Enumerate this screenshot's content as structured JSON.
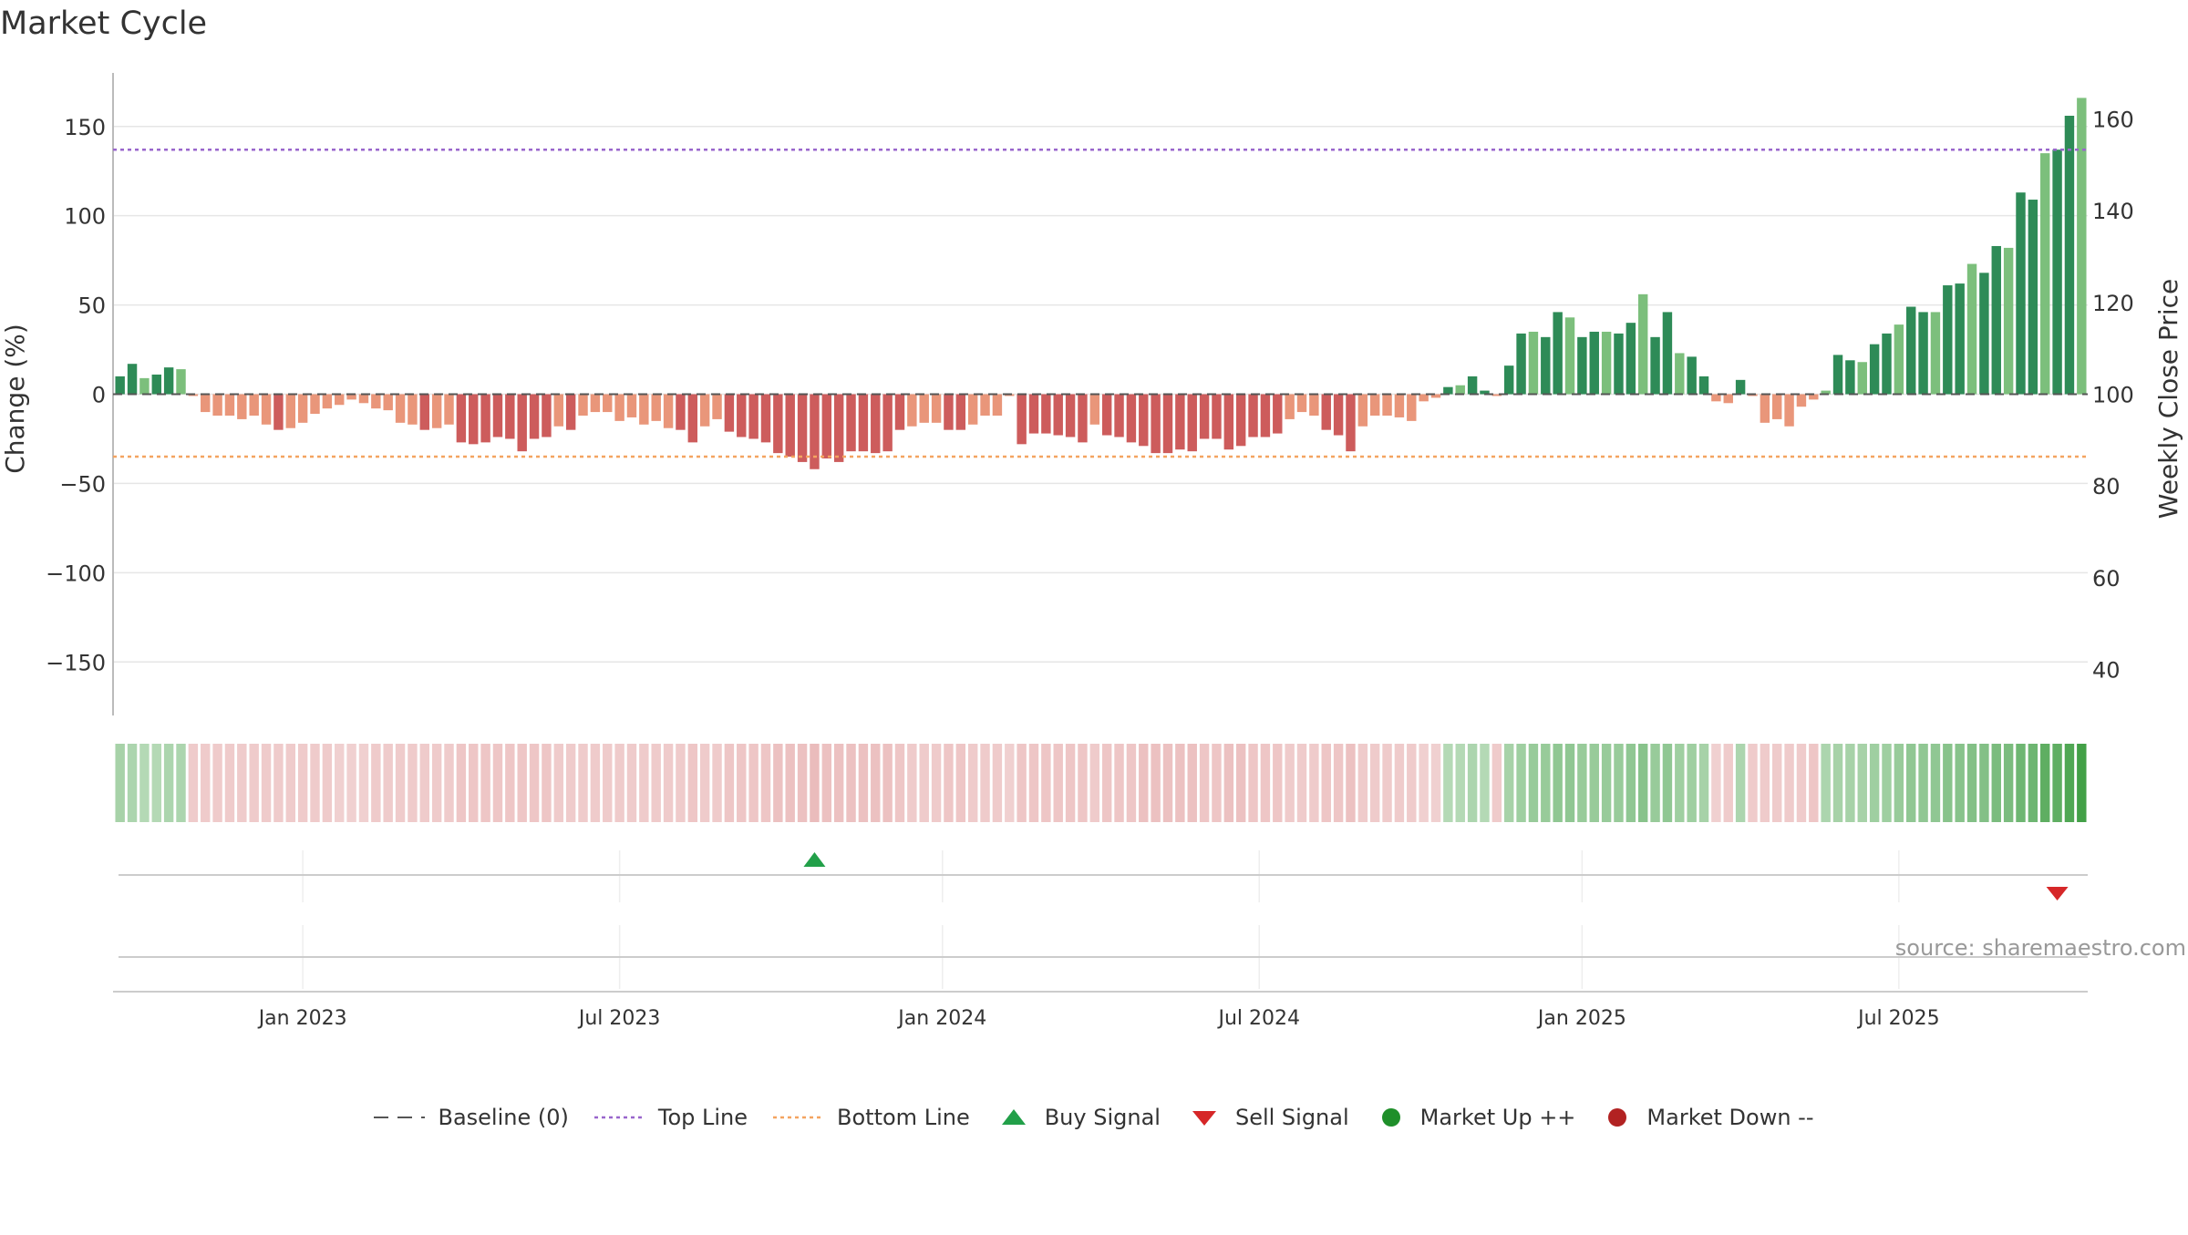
{
  "title": "Market Cycle",
  "source": "source: sharemaestro.com",
  "colors": {
    "up_dark": "#2e8b57",
    "up_light": "#7cbf7c",
    "down_dark": "#cd5c5c",
    "down_light": "#e9967a",
    "top_line": "#9966cc",
    "bottom_line": "#f4a460",
    "baseline": "#555555",
    "buy": "#22a049",
    "sell": "#d62728",
    "market_up": "#1f8f2a",
    "market_down": "#b22222"
  },
  "legend": [
    {
      "label": "Baseline (0)",
      "icon": "dash-line-icon"
    },
    {
      "label": "Top Line",
      "icon": "dotted-purple-line-icon"
    },
    {
      "label": "Bottom Line",
      "icon": "dotted-orange-line-icon"
    },
    {
      "label": "Buy Signal",
      "icon": "triangle-up-icon"
    },
    {
      "label": "Sell Signal",
      "icon": "triangle-down-icon"
    },
    {
      "label": "Market Up ++",
      "icon": "green-dot-icon"
    },
    {
      "label": "Market Down --",
      "icon": "red-dot-icon"
    }
  ],
  "chart_data": {
    "type": "bar",
    "title": "Market Cycle",
    "ylabel_left": "Change (%)",
    "ylabel_right": "Weekly Close Price",
    "ylim_left": [
      -180,
      180
    ],
    "ylim_right": [
      30,
      170
    ],
    "yticks_left": [
      150,
      100,
      50,
      0,
      -50,
      -100,
      -150
    ],
    "yticks_left_labels": [
      "150",
      "100",
      "50",
      "0",
      "−50",
      "−100",
      "−150"
    ],
    "yticks_right": [
      160,
      140,
      120,
      100,
      80,
      60,
      40
    ],
    "yticks_right_labels": [
      "160",
      "140",
      "120",
      "100",
      "80",
      "60",
      "40"
    ],
    "x_ticks": [
      {
        "label": "Jan 2023",
        "week": 15
      },
      {
        "label": "Jul 2023",
        "week": 41
      },
      {
        "label": "Jan 2024",
        "week": 67.5
      },
      {
        "label": "Jul 2024",
        "week": 93.5
      },
      {
        "label": "Jan 2025",
        "week": 120
      },
      {
        "label": "Jul 2025",
        "week": 146
      }
    ],
    "top_line": 137,
    "bottom_line": -35,
    "baseline": 0,
    "weekly_change": [
      10,
      17,
      9,
      11,
      15,
      14,
      -1,
      -10,
      -12,
      -12,
      -14,
      -12,
      -17,
      -20,
      -19,
      -16,
      -11,
      -8,
      -6,
      -3,
      -5,
      -8,
      -9,
      -16,
      -17,
      -20,
      -19,
      -17,
      -27,
      -28,
      -27,
      -24,
      -25,
      -32,
      -25,
      -24,
      -18,
      -20,
      -12,
      -10,
      -10,
      -15,
      -13,
      -17,
      -15,
      -19,
      -20,
      -27,
      -18,
      -14,
      -21,
      -24,
      -25,
      -27,
      -33,
      -35,
      -38,
      -42,
      -36,
      -38,
      -32,
      -32,
      -33,
      -32,
      -20,
      -18,
      -16,
      -16,
      -20,
      -20,
      -17,
      -12,
      -12,
      -1,
      -28,
      -22,
      -22,
      -23,
      -24,
      -27,
      -17,
      -23,
      -24,
      -27,
      -29,
      -33,
      -33,
      -31,
      -32,
      -25,
      -25,
      -31,
      -29,
      -24,
      -24,
      -22,
      -14,
      -10,
      -12,
      -20,
      -23,
      -32,
      -18,
      -12,
      -12,
      -13,
      -15,
      -4,
      -2,
      4,
      5,
      10,
      2,
      -1,
      16,
      34,
      35,
      32,
      46,
      43,
      32,
      35,
      35,
      34,
      40,
      56,
      32,
      46,
      23,
      21,
      10,
      -4,
      -5,
      8,
      -1,
      -16,
      -14,
      -18,
      -7,
      -3,
      2,
      22,
      19,
      18,
      28,
      34,
      39,
      49,
      46,
      46,
      61,
      62,
      73,
      68,
      83,
      82,
      113,
      109,
      135,
      137,
      156,
      166
    ],
    "regime_strength": [
      0.3,
      0.25,
      0.2,
      0.2,
      0.25,
      0.25,
      0.2,
      0.2,
      0.2,
      0.2,
      0.2,
      0.2,
      0.2,
      0.2,
      0.2,
      0.2,
      0.2,
      0.2,
      0.15,
      0.15,
      0.15,
      0.2,
      0.2,
      0.2,
      0.2,
      0.2,
      0.2,
      0.2,
      0.25,
      0.25,
      0.25,
      0.25,
      0.25,
      0.25,
      0.25,
      0.25,
      0.2,
      0.2,
      0.2,
      0.2,
      0.2,
      0.2,
      0.2,
      0.2,
      0.2,
      0.2,
      0.2,
      0.25,
      0.2,
      0.2,
      0.25,
      0.25,
      0.25,
      0.25,
      0.3,
      0.3,
      0.3,
      0.35,
      0.3,
      0.3,
      0.3,
      0.3,
      0.3,
      0.3,
      0.25,
      0.2,
      0.2,
      0.2,
      0.25,
      0.25,
      0.2,
      0.2,
      0.2,
      0.15,
      0.25,
      0.25,
      0.25,
      0.25,
      0.25,
      0.25,
      0.2,
      0.25,
      0.25,
      0.25,
      0.3,
      0.3,
      0.3,
      0.3,
      0.3,
      0.25,
      0.25,
      0.3,
      0.3,
      0.25,
      0.25,
      0.25,
      0.2,
      0.2,
      0.2,
      0.25,
      0.25,
      0.3,
      0.2,
      0.2,
      0.2,
      0.2,
      0.2,
      0.15,
      0.15,
      0.2,
      0.2,
      0.25,
      0.2,
      0.2,
      0.3,
      0.35,
      0.4,
      0.4,
      0.45,
      0.45,
      0.4,
      0.4,
      0.4,
      0.4,
      0.45,
      0.5,
      0.4,
      0.45,
      0.35,
      0.35,
      0.3,
      0.15,
      0.2,
      0.25,
      0.2,
      0.2,
      0.2,
      0.2,
      0.2,
      0.25,
      0.25,
      0.3,
      0.3,
      0.3,
      0.35,
      0.35,
      0.4,
      0.45,
      0.45,
      0.45,
      0.5,
      0.5,
      0.55,
      0.55,
      0.6,
      0.6,
      0.7,
      0.7,
      0.8,
      0.8,
      0.9,
      1.0
    ],
    "buy_signals": [
      {
        "week": 57
      }
    ],
    "sell_signals": [
      {
        "week": 159
      }
    ]
  }
}
